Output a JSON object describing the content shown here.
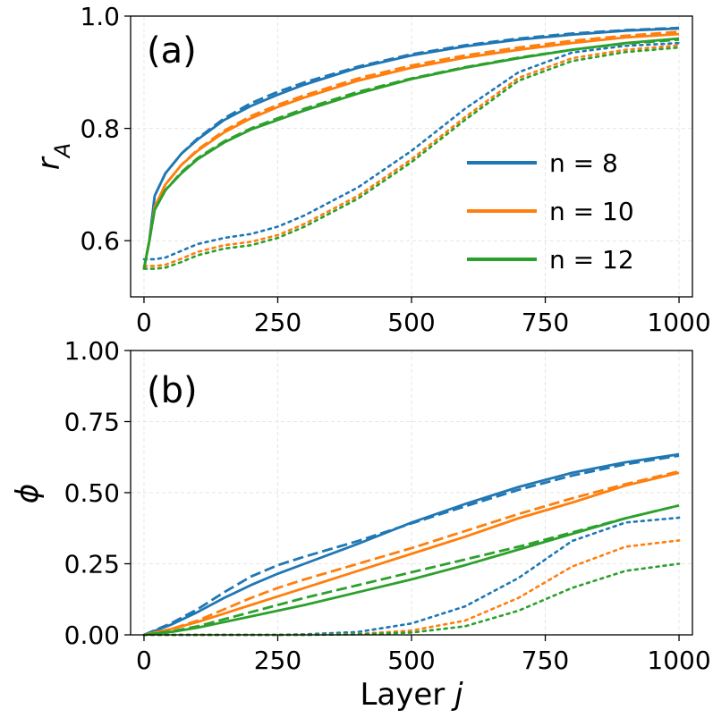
{
  "chart_data": [
    {
      "type": "line",
      "panel_label": "(a)",
      "ylabel_main": "r",
      "ylabel_sub": "A",
      "xlabel": "",
      "xlim": [
        -25,
        1025
      ],
      "ylim": [
        0.5,
        1.0
      ],
      "xticks": [
        0,
        250,
        500,
        750,
        1000
      ],
      "yticks": [
        0.6,
        0.8,
        1.0
      ],
      "ytick_labels": [
        "0.6",
        "0.8",
        "1.0"
      ],
      "grid": true,
      "legend_position": "center-right",
      "legend_style": "solid",
      "x": [
        0,
        10,
        20,
        40,
        70,
        100,
        150,
        200,
        250,
        300,
        400,
        500,
        600,
        700,
        800,
        900,
        1000
      ],
      "series": [
        {
          "name": "n = 8",
          "color": "#1f77b4",
          "style": "solid",
          "values": [
            0.55,
            0.6,
            0.68,
            0.72,
            0.755,
            0.78,
            0.815,
            0.84,
            0.86,
            0.878,
            0.908,
            0.93,
            0.946,
            0.958,
            0.967,
            0.974,
            0.978
          ]
        },
        {
          "name": "n = 8 (dashed)",
          "color": "#1f77b4",
          "style": "dashed",
          "values": [
            0.55,
            0.6,
            0.68,
            0.72,
            0.755,
            0.782,
            0.818,
            0.845,
            0.865,
            0.882,
            0.91,
            0.932,
            0.948,
            0.96,
            0.969,
            0.975,
            0.979
          ]
        },
        {
          "name": "n = 8 (dotted)",
          "color": "#1f77b4",
          "style": "dotted",
          "values": [
            0.567,
            0.567,
            0.567,
            0.57,
            0.582,
            0.594,
            0.605,
            0.612,
            0.625,
            0.645,
            0.695,
            0.76,
            0.835,
            0.9,
            0.935,
            0.947,
            0.952
          ]
        },
        {
          "name": "n = 10",
          "color": "#ff7f0e",
          "style": "solid",
          "values": [
            0.55,
            0.6,
            0.66,
            0.7,
            0.735,
            0.76,
            0.793,
            0.818,
            0.838,
            0.855,
            0.885,
            0.908,
            0.926,
            0.94,
            0.952,
            0.962,
            0.968
          ]
        },
        {
          "name": "n = 10 (dashed)",
          "color": "#ff7f0e",
          "style": "dashed",
          "values": [
            0.55,
            0.6,
            0.66,
            0.7,
            0.735,
            0.762,
            0.796,
            0.822,
            0.842,
            0.859,
            0.889,
            0.912,
            0.93,
            0.944,
            0.956,
            0.965,
            0.972
          ]
        },
        {
          "name": "n = 10 (dotted)",
          "color": "#ff7f0e",
          "style": "dotted",
          "values": [
            0.555,
            0.555,
            0.555,
            0.557,
            0.568,
            0.58,
            0.592,
            0.598,
            0.61,
            0.63,
            0.68,
            0.745,
            0.82,
            0.89,
            0.925,
            0.94,
            0.948
          ]
        },
        {
          "name": "n = 12",
          "color": "#2ca02c",
          "style": "solid",
          "values": [
            0.55,
            0.6,
            0.655,
            0.69,
            0.72,
            0.745,
            0.775,
            0.798,
            0.815,
            0.832,
            0.862,
            0.888,
            0.908,
            0.925,
            0.94,
            0.952,
            0.96
          ]
        },
        {
          "name": "n = 12 (dashed)",
          "color": "#2ca02c",
          "style": "dashed",
          "values": [
            0.55,
            0.6,
            0.655,
            0.69,
            0.722,
            0.747,
            0.777,
            0.8,
            0.818,
            0.835,
            0.865,
            0.889,
            0.909,
            0.926,
            0.94,
            0.951,
            0.958
          ]
        },
        {
          "name": "n = 12 (dotted)",
          "color": "#2ca02c",
          "style": "dotted",
          "values": [
            0.55,
            0.55,
            0.55,
            0.552,
            0.562,
            0.574,
            0.586,
            0.592,
            0.605,
            0.625,
            0.675,
            0.74,
            0.815,
            0.885,
            0.92,
            0.936,
            0.944
          ]
        }
      ],
      "legend": [
        {
          "label": "n = 8",
          "color": "#1f77b4"
        },
        {
          "label": "n = 10",
          "color": "#ff7f0e"
        },
        {
          "label": "n = 12",
          "color": "#2ca02c"
        }
      ]
    },
    {
      "type": "line",
      "panel_label": "(b)",
      "ylabel": "ϕ",
      "xlabel_main": "Layer",
      "xlabel_var": "j",
      "xlim": [
        -25,
        1025
      ],
      "ylim": [
        0.0,
        1.0
      ],
      "xticks": [
        0,
        250,
        500,
        750,
        1000
      ],
      "yticks": [
        0.0,
        0.25,
        0.5,
        0.75,
        1.0
      ],
      "ytick_labels": [
        "0.00",
        "0.25",
        "0.50",
        "0.75",
        "1.00"
      ],
      "grid": true,
      "x": [
        0,
        50,
        100,
        150,
        200,
        250,
        300,
        400,
        500,
        600,
        700,
        800,
        900,
        1000
      ],
      "series": [
        {
          "name": "n = 8",
          "color": "#1f77b4",
          "style": "solid",
          "values": [
            0.0,
            0.035,
            0.08,
            0.13,
            0.175,
            0.215,
            0.25,
            0.32,
            0.395,
            0.46,
            0.52,
            0.57,
            0.607,
            0.635
          ]
        },
        {
          "name": "n = 8 (dashed)",
          "color": "#1f77b4",
          "style": "dashed",
          "values": [
            0.0,
            0.04,
            0.09,
            0.15,
            0.205,
            0.245,
            0.275,
            0.33,
            0.392,
            0.452,
            0.51,
            0.56,
            0.6,
            0.63
          ]
        },
        {
          "name": "n = 8 (dotted)",
          "color": "#1f77b4",
          "style": "dotted",
          "values": [
            0.0,
            0.0,
            0.0,
            0.0,
            0.0,
            0.0,
            0.002,
            0.01,
            0.04,
            0.1,
            0.2,
            0.33,
            0.395,
            0.412
          ]
        },
        {
          "name": "n = 10",
          "color": "#ff7f0e",
          "style": "solid",
          "values": [
            0.0,
            0.02,
            0.045,
            0.075,
            0.105,
            0.135,
            0.165,
            0.225,
            0.285,
            0.345,
            0.41,
            0.465,
            0.525,
            0.57
          ]
        },
        {
          "name": "n = 10 (dashed)",
          "color": "#ff7f0e",
          "style": "dashed",
          "values": [
            0.0,
            0.02,
            0.05,
            0.09,
            0.13,
            0.165,
            0.195,
            0.25,
            0.305,
            0.365,
            0.425,
            0.48,
            0.53,
            0.575
          ]
        },
        {
          "name": "n = 10 (dotted)",
          "color": "#ff7f0e",
          "style": "dotted",
          "values": [
            0.0,
            0.0,
            0.0,
            0.0,
            0.0,
            0.0,
            0.0,
            0.003,
            0.015,
            0.05,
            0.13,
            0.24,
            0.31,
            0.332
          ]
        },
        {
          "name": "n = 12",
          "color": "#2ca02c",
          "style": "solid",
          "values": [
            0.0,
            0.01,
            0.025,
            0.045,
            0.065,
            0.085,
            0.105,
            0.15,
            0.195,
            0.245,
            0.3,
            0.355,
            0.41,
            0.455
          ]
        },
        {
          "name": "n = 12 (dashed)",
          "color": "#2ca02c",
          "style": "dashed",
          "values": [
            0.0,
            0.012,
            0.03,
            0.055,
            0.08,
            0.105,
            0.13,
            0.175,
            0.22,
            0.265,
            0.31,
            0.36,
            0.41,
            0.455
          ]
        },
        {
          "name": "n = 12 (dotted)",
          "color": "#2ca02c",
          "style": "dotted",
          "values": [
            0.0,
            0.0,
            0.0,
            0.0,
            0.0,
            0.0,
            0.0,
            0.002,
            0.008,
            0.03,
            0.085,
            0.165,
            0.225,
            0.25
          ]
        }
      ]
    }
  ]
}
